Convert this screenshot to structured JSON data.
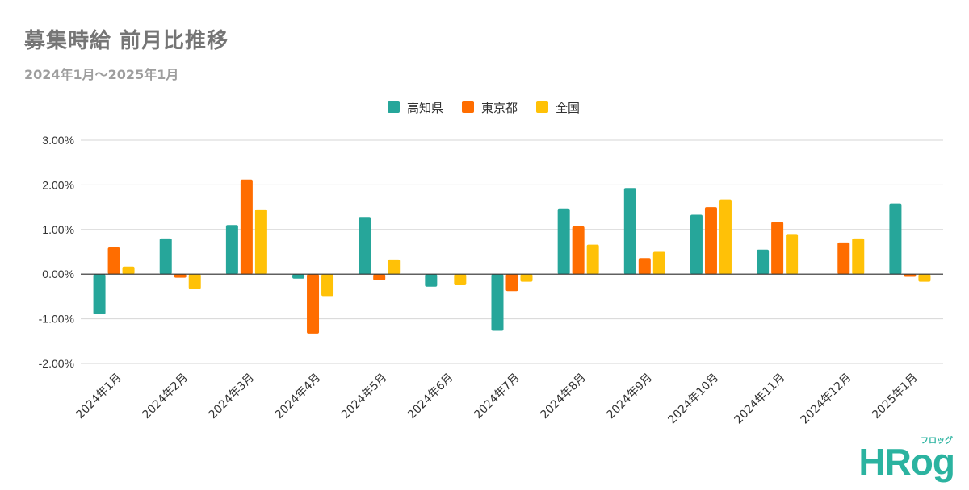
{
  "header": {
    "title": "募集時給 前月比推移",
    "subtitle": "2024年1月～2025年1月"
  },
  "brand": {
    "main": "HRog",
    "sub": "フロッグ"
  },
  "chart_data": {
    "type": "bar",
    "categories": [
      "2024年1月",
      "2024年2月",
      "2024年3月",
      "2024年4月",
      "2024年5月",
      "2024年6月",
      "2024年7月",
      "2024年8月",
      "2024年9月",
      "2024年10月",
      "2024年11月",
      "2024年12月",
      "2025年1月"
    ],
    "series": [
      {
        "name": "高知県",
        "color": "#26a69a",
        "values": [
          -0.9,
          0.8,
          1.1,
          -0.1,
          1.28,
          -0.28,
          -1.27,
          1.47,
          1.93,
          1.33,
          0.55,
          0.0,
          1.58
        ]
      },
      {
        "name": "東京都",
        "color": "#ff6d00",
        "values": [
          0.6,
          -0.08,
          2.12,
          -1.33,
          -0.14,
          0.0,
          -0.38,
          1.07,
          0.36,
          1.5,
          1.17,
          0.71,
          -0.06
        ]
      },
      {
        "name": "全国",
        "color": "#ffc107",
        "values": [
          0.17,
          -0.33,
          1.45,
          -0.49,
          0.33,
          -0.25,
          -0.17,
          0.66,
          0.5,
          1.67,
          0.9,
          0.8,
          -0.17
        ]
      }
    ],
    "yticks": [
      "3.00%",
      "2.00%",
      "1.00%",
      "0.00%",
      "-1.00%",
      "-2.00%"
    ],
    "ylim": [
      -2,
      3
    ],
    "legend_position": "top-center",
    "grid": true
  }
}
